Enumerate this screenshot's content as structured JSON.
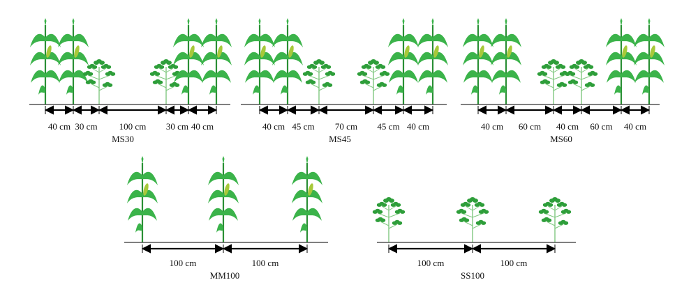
{
  "colors": {
    "leaf": "#3bb34a",
    "leaf_dark": "#2a8f35",
    "ear": "#a7c93a",
    "soy_leaf": "#2e9e3a",
    "soy_stem": "#7fc87f",
    "ground": "#333333",
    "arrow": "#000000"
  },
  "panels": [
    {
      "id": "ms30",
      "title": "MS30",
      "plants": [
        "maize",
        "maize",
        "soybean",
        "soybean",
        "maize",
        "maize"
      ],
      "spacings": [
        "40 cm",
        "30 cm",
        "100 cm",
        "30 cm",
        "40 cm"
      ]
    },
    {
      "id": "ms45",
      "title": "MS45",
      "plants": [
        "maize",
        "maize",
        "soybean",
        "soybean",
        "maize",
        "maize"
      ],
      "spacings": [
        "40 cm",
        "45 cm",
        "70 cm",
        "45 cm",
        "40 cm"
      ]
    },
    {
      "id": "ms60",
      "title": "MS60",
      "plants": [
        "maize",
        "maize",
        "soybean",
        "soybean",
        "maize",
        "maize"
      ],
      "spacings": [
        "40 cm",
        "60 cm",
        "40 cm",
        "60 cm",
        "40 cm"
      ]
    },
    {
      "id": "mm100",
      "title": "MM100",
      "plants": [
        "maize",
        "maize",
        "maize"
      ],
      "spacings": [
        "100 cm",
        "100 cm"
      ]
    },
    {
      "id": "ss100",
      "title": "SS100",
      "plants": [
        "soybean",
        "soybean",
        "soybean"
      ],
      "spacings": [
        "100 cm",
        "100 cm"
      ]
    }
  ]
}
